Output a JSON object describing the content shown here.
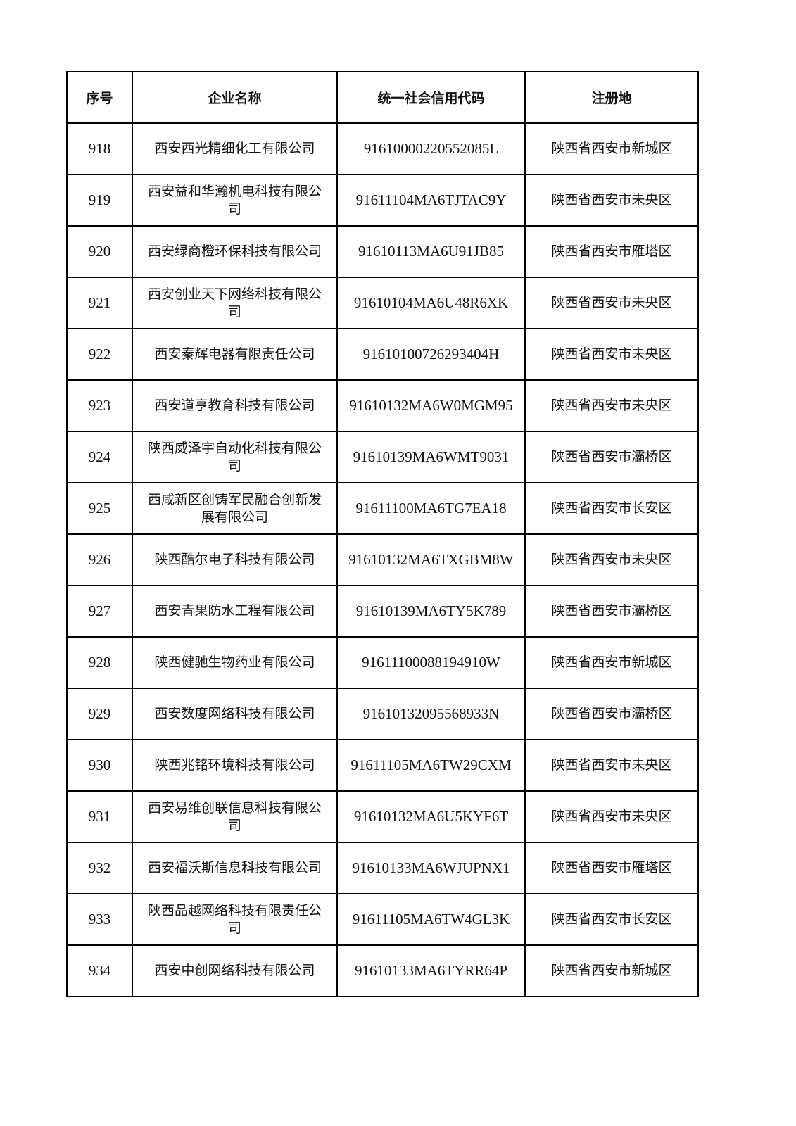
{
  "table": {
    "headers": [
      "序号",
      "企业名称",
      "统一社会信用代码",
      "注册地"
    ],
    "rows": [
      [
        "918",
        "西安西光精细化工有限公司",
        "91610000220552085L",
        "陕西省西安市新城区"
      ],
      [
        "919",
        "西安益和华瀚机电科技有限公司",
        "91611104MA6TJTAC9Y",
        "陕西省西安市未央区"
      ],
      [
        "920",
        "西安绿商橙环保科技有限公司",
        "91610113MA6U91JB85",
        "陕西省西安市雁塔区"
      ],
      [
        "921",
        "西安创业天下网络科技有限公司",
        "91610104MA6U48R6XK",
        "陕西省西安市未央区"
      ],
      [
        "922",
        "西安秦辉电器有限责任公司",
        "91610100726293404H",
        "陕西省西安市未央区"
      ],
      [
        "923",
        "西安道亨教育科技有限公司",
        "91610132MA6W0MGM95",
        "陕西省西安市未央区"
      ],
      [
        "924",
        "陕西威泽宇自动化科技有限公司",
        "91610139MA6WMT9031",
        "陕西省西安市灞桥区"
      ],
      [
        "925",
        "西咸新区创铸军民融合创新发展有限公司",
        "91611100MA6TG7EA18",
        "陕西省西安市长安区"
      ],
      [
        "926",
        "陕西酷尔电子科技有限公司",
        "91610132MA6TXGBM8W",
        "陕西省西安市未央区"
      ],
      [
        "927",
        "西安青果防水工程有限公司",
        "91610139MA6TY5K789",
        "陕西省西安市灞桥区"
      ],
      [
        "928",
        "陕西健驰生物药业有限公司",
        "91611100088194910W",
        "陕西省西安市新城区"
      ],
      [
        "929",
        "西安数度网络科技有限公司",
        "91610132095568933N",
        "陕西省西安市灞桥区"
      ],
      [
        "930",
        "陕西兆铭环境科技有限公司",
        "91611105MA6TW29CXM",
        "陕西省西安市未央区"
      ],
      [
        "931",
        "西安易维创联信息科技有限公司",
        "91610132MA6U5KYF6T",
        "陕西省西安市未央区"
      ],
      [
        "932",
        "西安福沃斯信息科技有限公司",
        "91610133MA6WJUPNX1",
        "陕西省西安市雁塔区"
      ],
      [
        "933",
        "陕西品越网络科技有限责任公司",
        "91611105MA6TW4GL3K",
        "陕西省西安市长安区"
      ],
      [
        "934",
        "西安中创网络科技有限公司",
        "91610133MA6TYRR64P",
        "陕西省西安市新城区"
      ]
    ]
  }
}
